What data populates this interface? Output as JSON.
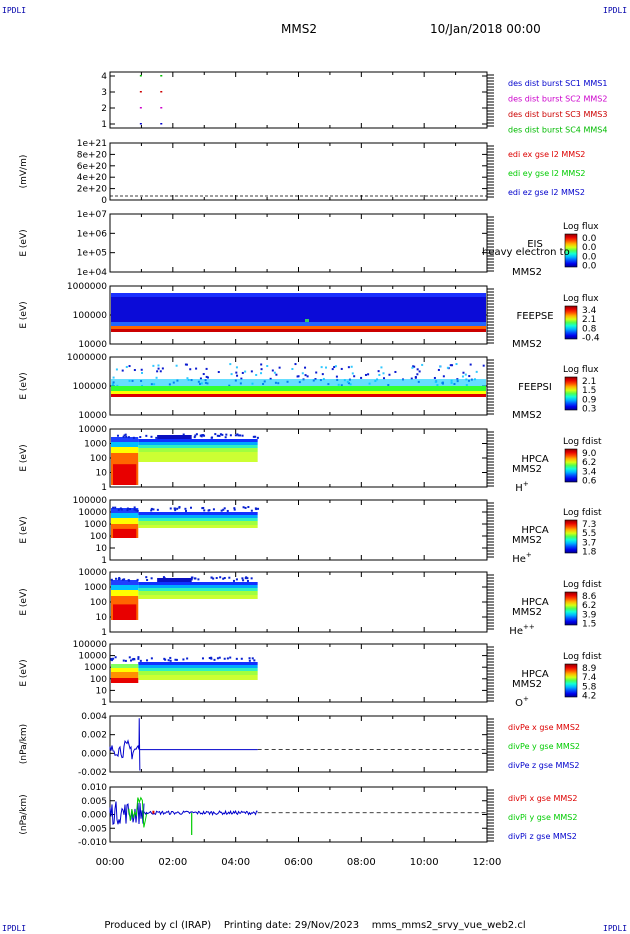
{
  "header": {
    "corner_label": "IPDLI",
    "title": "MMS2",
    "datetime": "10/Jan/2018 00:00"
  },
  "footer": {
    "produced_by": "Produced by cl (IRAP)",
    "printing_date": "Printing date: 29/Nov/2023",
    "filename": "mms_mms2_srvy_vue_web2.cl"
  },
  "x_axis": {
    "tick_labels": [
      "00:00",
      "02:00",
      "04:00",
      "06:00",
      "08:00",
      "10:00",
      "12:00"
    ]
  },
  "colors": {
    "mms1": "#0000cc",
    "mms2": "#cc00cc",
    "mms3": "#cc0000",
    "mms4": "#00bb00",
    "x": "#dd0000",
    "y": "#00cc00",
    "z": "#0000cc"
  },
  "panels": [
    {
      "id": "des",
      "ylabel": "",
      "tick_labels": [
        "4",
        "3",
        "2",
        "1"
      ],
      "legend": [
        {
          "text": "des dist burst SC1 MMS1",
          "color": "#0000cc"
        },
        {
          "text": "des dist burst SC2 MMS2",
          "color": "#cc00cc"
        },
        {
          "text": "des dist burst SC3 MMS3",
          "color": "#cc0000"
        },
        {
          "text": "des dist burst SC4 MMS4",
          "color": "#00bb00"
        }
      ]
    },
    {
      "id": "edi",
      "ylabel": "(mV/m)",
      "tick_labels": [
        "1e+21",
        "8e+20",
        "6e+20",
        "4e+20",
        "2e+20",
        "0"
      ],
      "legend": [
        {
          "text": "edi ex gse l2 MMS2",
          "color": "#dd0000"
        },
        {
          "text": "edi ey gse l2 MMS2",
          "color": "#00cc00"
        },
        {
          "text": "edi ez gse l2 MMS2",
          "color": "#0000cc"
        }
      ]
    },
    {
      "id": "eis",
      "ylabel": "E (eV)",
      "tick_labels": [
        "1e+07",
        "1e+06",
        "1e+05",
        "1e+04"
      ],
      "instrument": "EIS",
      "overlay": "heavy electron to",
      "spacecraft": "MMS2",
      "species": "",
      "cbar_title": "Log flux",
      "cbar_ticks": [
        "0.0",
        "0.0",
        "0.0",
        "0.0"
      ]
    },
    {
      "id": "feepse",
      "ylabel": "E (eV)",
      "tick_labels": [
        "1000000",
        "100000",
        "10000"
      ],
      "instrument": "FEEPSE",
      "spacecraft": "MMS2",
      "species": "",
      "cbar_title": "Log flux",
      "cbar_ticks": [
        "3.4",
        "2.1",
        "0.8",
        "-0.4"
      ]
    },
    {
      "id": "feepsi",
      "ylabel": "E (eV)",
      "tick_labels": [
        "1000000",
        "100000",
        "10000"
      ],
      "instrument": "FEEPSI",
      "spacecraft": "MMS2",
      "species": "",
      "cbar_title": "Log flux",
      "cbar_ticks": [
        "2.1",
        "1.5",
        "0.9",
        "0.3"
      ]
    },
    {
      "id": "hpca-h",
      "ylabel": "E (eV)",
      "tick_labels": [
        "10000",
        "1000",
        "100",
        "10",
        "1"
      ],
      "instrument": "HPCA",
      "spacecraft": "MMS2",
      "species": "H",
      "species_sup": "+",
      "cbar_title": "Log fdist",
      "cbar_ticks": [
        "9.0",
        "6.2",
        "3.4",
        "0.6"
      ]
    },
    {
      "id": "hpca-he",
      "ylabel": "E (eV)",
      "tick_labels": [
        "100000",
        "10000",
        "1000",
        "100",
        "10",
        "1"
      ],
      "instrument": "HPCA",
      "spacecraft": "MMS2",
      "species": "He",
      "species_sup": "+",
      "cbar_title": "Log fdist",
      "cbar_ticks": [
        "7.3",
        "5.5",
        "3.7",
        "1.8"
      ]
    },
    {
      "id": "hpca-he2",
      "ylabel": "E (eV)",
      "tick_labels": [
        "10000",
        "1000",
        "100",
        "10",
        "1"
      ],
      "instrument": "HPCA",
      "spacecraft": "MMS2",
      "species": "He",
      "species_sup": "++",
      "cbar_title": "Log fdist",
      "cbar_ticks": [
        "8.6",
        "6.2",
        "3.9",
        "1.5"
      ]
    },
    {
      "id": "hpca-o",
      "ylabel": "E (eV)",
      "tick_labels": [
        "100000",
        "10000",
        "1000",
        "100",
        "10",
        "1"
      ],
      "instrument": "HPCA",
      "spacecraft": "MMS2",
      "species": "O",
      "species_sup": "+",
      "cbar_title": "Log fdist",
      "cbar_ticks": [
        "8.9",
        "7.4",
        "5.8",
        "4.2"
      ]
    },
    {
      "id": "divpe",
      "ylabel": "(nPa/km)",
      "tick_labels": [
        "0.004",
        "0.002",
        "0.000",
        "-0.002"
      ],
      "legend": [
        {
          "text": "divPe x gse MMS2",
          "color": "#dd0000"
        },
        {
          "text": "divPe y gse MMS2",
          "color": "#00cc00"
        },
        {
          "text": "divPe z gse MMS2",
          "color": "#0000cc"
        }
      ]
    },
    {
      "id": "divpi",
      "ylabel": "(nPa/km)",
      "tick_labels": [
        "0.010",
        "0.005",
        "0.000",
        "-0.005",
        "-0.010"
      ],
      "legend": [
        {
          "text": "divPi x gse MMS2",
          "color": "#dd0000"
        },
        {
          "text": "divPi y gse MMS2",
          "color": "#00cc00"
        },
        {
          "text": "divPi z gse MMS2",
          "color": "#0000cc"
        }
      ]
    }
  ],
  "chart_data": {
    "type": "heatmap",
    "x_range_hours": [
      0,
      12
    ],
    "des_markers": [
      {
        "sc": 1,
        "times_h": [
          0.95,
          1.6
        ]
      },
      {
        "sc": 2,
        "times_h": [
          0.95,
          1.6
        ]
      },
      {
        "sc": 3,
        "times_h": [
          0.95,
          1.6
        ]
      },
      {
        "sc": 4,
        "times_h": [
          0.95,
          1.6
        ]
      }
    ],
    "divpe_range": [
      -0.003,
      0.0045
    ],
    "divpi_range": [
      -0.0125,
      0.011
    ]
  }
}
